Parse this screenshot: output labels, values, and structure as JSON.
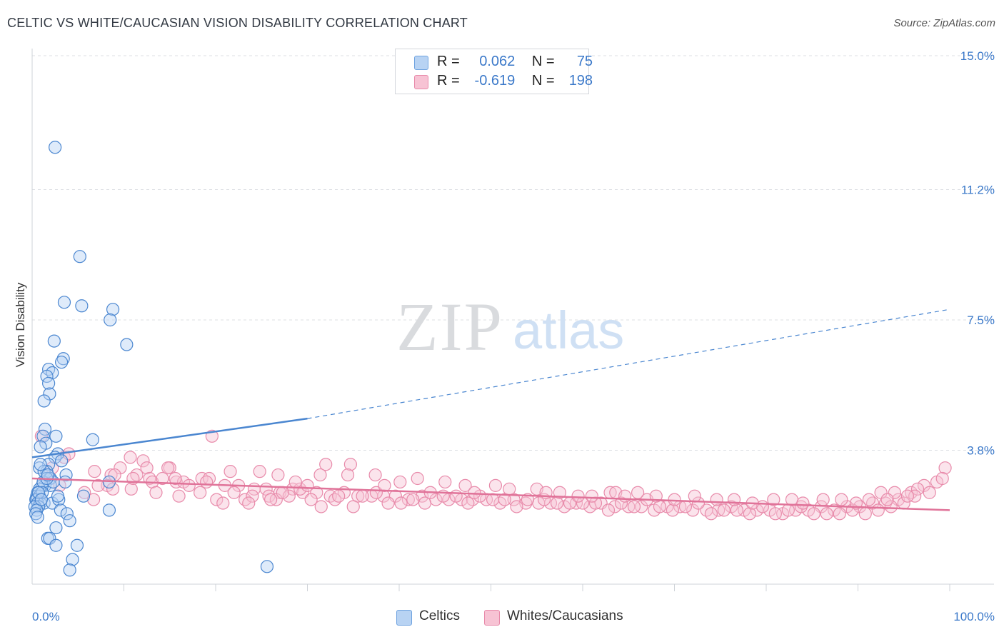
{
  "title": "CELTIC VS WHITE/CAUCASIAN VISION DISABILITY CORRELATION CHART",
  "source": "Source: ZipAtlas.com",
  "watermark": {
    "zip": "ZIP",
    "atlas": "atlas"
  },
  "legend": {
    "rows": [
      {
        "r_label": "R =",
        "r_value": "0.062",
        "n_label": "N =",
        "n_value": "75",
        "color": "#6fa3e0",
        "fill": "#b8d3f3"
      },
      {
        "r_label": "R =",
        "r_value": "-0.619",
        "n_label": "N =",
        "n_value": "198",
        "color": "#e88aaa",
        "fill": "#f7c3d4"
      }
    ]
  },
  "bottom_legend": [
    {
      "label": "Celtics",
      "color": "#6fa3e0",
      "fill": "#b8d3f3"
    },
    {
      "label": "Whites/Caucasians",
      "color": "#e88aaa",
      "fill": "#f7c3d4"
    }
  ],
  "chart_data": {
    "type": "scatter",
    "title": "CELTIC VS WHITE/CAUCASIAN VISION DISABILITY CORRELATION CHART",
    "xlabel": "",
    "ylabel": "Vision Disability",
    "xlim": [
      0,
      100
    ],
    "ylim": [
      0,
      15
    ],
    "x_tick_labels": [
      "0.0%",
      "100.0%"
    ],
    "y_ticks": [
      3.8,
      7.5,
      11.2,
      15.0
    ],
    "y_tick_labels": [
      "3.8%",
      "7.5%",
      "11.2%",
      "15.0%"
    ],
    "grid": true,
    "colors": {
      "celtics": "#4a86d0",
      "whites": "#e07399",
      "axis_text": "#3a78c9"
    },
    "series": [
      {
        "name": "Celtics",
        "trend": {
          "x0": 0,
          "y0": 3.6,
          "x1": 30,
          "y1": 4.7,
          "dashed_to_x": 100,
          "dashed_to_y": 7.8
        },
        "points": [
          [
            2.5,
            12.4
          ],
          [
            5.2,
            9.3
          ],
          [
            3.5,
            8.0
          ],
          [
            5.4,
            7.9
          ],
          [
            8.8,
            7.8
          ],
          [
            8.5,
            7.5
          ],
          [
            2.4,
            6.9
          ],
          [
            10.3,
            6.8
          ],
          [
            3.4,
            6.4
          ],
          [
            3.2,
            6.3
          ],
          [
            1.8,
            6.1
          ],
          [
            2.2,
            6.0
          ],
          [
            1.6,
            5.9
          ],
          [
            1.8,
            5.7
          ],
          [
            1.9,
            5.4
          ],
          [
            1.3,
            5.2
          ],
          [
            1.4,
            4.4
          ],
          [
            1.2,
            4.2
          ],
          [
            2.6,
            4.2
          ],
          [
            6.6,
            4.1
          ],
          [
            1.5,
            4.0
          ],
          [
            0.9,
            3.9
          ],
          [
            2.8,
            3.7
          ],
          [
            2.5,
            3.6
          ],
          [
            1.8,
            3.4
          ],
          [
            0.8,
            3.3
          ],
          [
            1.6,
            3.2
          ],
          [
            1.3,
            3.2
          ],
          [
            3.7,
            3.1
          ],
          [
            1.9,
            3.0
          ],
          [
            2.0,
            3.0
          ],
          [
            3.6,
            2.9
          ],
          [
            8.4,
            2.9
          ],
          [
            1.4,
            2.8
          ],
          [
            2.0,
            2.8
          ],
          [
            1.1,
            2.8
          ],
          [
            0.8,
            2.7
          ],
          [
            0.6,
            2.6
          ],
          [
            0.5,
            2.5
          ],
          [
            0.8,
            2.5
          ],
          [
            0.4,
            2.4
          ],
          [
            0.5,
            2.4
          ],
          [
            0.9,
            2.3
          ],
          [
            0.6,
            2.3
          ],
          [
            1.3,
            2.3
          ],
          [
            0.7,
            2.2
          ],
          [
            0.3,
            2.2
          ],
          [
            2.2,
            2.3
          ],
          [
            2.9,
            2.4
          ],
          [
            5.6,
            2.5
          ],
          [
            3.1,
            2.1
          ],
          [
            0.5,
            2.1
          ],
          [
            0.4,
            2.0
          ],
          [
            0.6,
            1.9
          ],
          [
            3.8,
            2.0
          ],
          [
            4.1,
            1.8
          ],
          [
            2.6,
            1.6
          ],
          [
            1.7,
            1.3
          ],
          [
            1.9,
            1.3
          ],
          [
            2.6,
            1.1
          ],
          [
            4.9,
            1.1
          ],
          [
            4.4,
            0.7
          ],
          [
            4.1,
            0.4
          ],
          [
            25.6,
            0.5
          ],
          [
            8.4,
            2.1
          ],
          [
            2.8,
            2.5
          ],
          [
            1.2,
            2.9
          ],
          [
            0.9,
            3.4
          ],
          [
            2.3,
            2.9
          ],
          [
            1.1,
            2.6
          ],
          [
            1.6,
            3.0
          ],
          [
            3.2,
            3.5
          ],
          [
            0.7,
            2.6
          ],
          [
            1.0,
            2.4
          ],
          [
            1.7,
            3.1
          ]
        ]
      },
      {
        "name": "Whites/Caucasians",
        "trend": {
          "x0": 0,
          "y0": 3.0,
          "x1": 100,
          "y1": 2.1
        },
        "points": [
          [
            1.0,
            4.2
          ],
          [
            3.5,
            3.6
          ],
          [
            19.6,
            4.2
          ],
          [
            10.7,
            3.6
          ],
          [
            12.1,
            3.5
          ],
          [
            12.5,
            3.3
          ],
          [
            15.0,
            3.3
          ],
          [
            9.6,
            3.3
          ],
          [
            6.8,
            3.2
          ],
          [
            8.6,
            3.1
          ],
          [
            11.4,
            3.1
          ],
          [
            12.8,
            3.0
          ],
          [
            13.1,
            2.9
          ],
          [
            14.2,
            3.0
          ],
          [
            15.7,
            2.9
          ],
          [
            16.5,
            2.9
          ],
          [
            17.1,
            2.8
          ],
          [
            18.5,
            3.0
          ],
          [
            19.3,
            3.0
          ],
          [
            21.0,
            2.8
          ],
          [
            22.5,
            2.8
          ],
          [
            24.2,
            2.7
          ],
          [
            25.5,
            2.7
          ],
          [
            27.0,
            2.6
          ],
          [
            28.4,
            2.7
          ],
          [
            29.5,
            2.6
          ],
          [
            31.0,
            2.6
          ],
          [
            32.5,
            2.5
          ],
          [
            34.0,
            2.6
          ],
          [
            35.5,
            2.5
          ],
          [
            37.0,
            2.5
          ],
          [
            38.3,
            2.5
          ],
          [
            39.6,
            2.5
          ],
          [
            41.0,
            2.4
          ],
          [
            42.5,
            2.5
          ],
          [
            44.0,
            2.4
          ],
          [
            45.4,
            2.4
          ],
          [
            46.8,
            2.4
          ],
          [
            48.0,
            2.4
          ],
          [
            49.5,
            2.4
          ],
          [
            51.0,
            2.3
          ],
          [
            52.5,
            2.4
          ],
          [
            53.8,
            2.3
          ],
          [
            55.2,
            2.3
          ],
          [
            56.5,
            2.3
          ],
          [
            58.0,
            2.2
          ],
          [
            59.3,
            2.3
          ],
          [
            60.8,
            2.2
          ],
          [
            62.0,
            2.3
          ],
          [
            63.5,
            2.2
          ],
          [
            65.0,
            2.2
          ],
          [
            66.4,
            2.2
          ],
          [
            67.8,
            2.1
          ],
          [
            69.2,
            2.2
          ],
          [
            70.6,
            2.2
          ],
          [
            72.0,
            2.1
          ],
          [
            73.5,
            2.1
          ],
          [
            74.8,
            2.1
          ],
          [
            76.2,
            2.2
          ],
          [
            77.6,
            2.1
          ],
          [
            79.0,
            2.1
          ],
          [
            80.4,
            2.1
          ],
          [
            81.8,
            2.0
          ],
          [
            83.2,
            2.1
          ],
          [
            84.6,
            2.1
          ],
          [
            86.0,
            2.2
          ],
          [
            87.4,
            2.1
          ],
          [
            88.8,
            2.2
          ],
          [
            90.2,
            2.2
          ],
          [
            91.6,
            2.3
          ],
          [
            93.0,
            2.3
          ],
          [
            94.4,
            2.4
          ],
          [
            95.8,
            2.6
          ],
          [
            97.2,
            2.8
          ],
          [
            98.6,
            2.9
          ],
          [
            99.5,
            3.3
          ],
          [
            99.2,
            3.0
          ],
          [
            96.5,
            2.7
          ],
          [
            94.0,
            2.6
          ],
          [
            92.5,
            2.6
          ],
          [
            4.0,
            3.7
          ],
          [
            2.2,
            3.3
          ],
          [
            5.7,
            2.6
          ],
          [
            6.7,
            2.4
          ],
          [
            8.2,
            2.8
          ],
          [
            8.8,
            2.7
          ],
          [
            10.8,
            2.7
          ],
          [
            13.5,
            2.6
          ],
          [
            16.0,
            2.5
          ],
          [
            18.3,
            2.6
          ],
          [
            20.1,
            2.4
          ],
          [
            20.8,
            2.3
          ],
          [
            22.0,
            2.6
          ],
          [
            23.2,
            2.4
          ],
          [
            24.0,
            2.5
          ],
          [
            25.8,
            2.5
          ],
          [
            26.6,
            2.4
          ],
          [
            28.0,
            2.5
          ],
          [
            29.2,
            2.7
          ],
          [
            30.4,
            2.4
          ],
          [
            31.5,
            2.2
          ],
          [
            32.0,
            3.4
          ],
          [
            33.0,
            2.4
          ],
          [
            35.0,
            2.2
          ],
          [
            36.0,
            2.5
          ],
          [
            37.5,
            2.6
          ],
          [
            38.8,
            2.3
          ],
          [
            40.2,
            2.3
          ],
          [
            41.5,
            2.4
          ],
          [
            42.8,
            2.3
          ],
          [
            43.4,
            2.6
          ],
          [
            44.8,
            2.5
          ],
          [
            46.2,
            2.5
          ],
          [
            47.5,
            2.3
          ],
          [
            48.8,
            2.5
          ],
          [
            50.2,
            2.4
          ],
          [
            51.5,
            2.4
          ],
          [
            52.8,
            2.2
          ],
          [
            54.0,
            2.4
          ],
          [
            55.8,
            2.4
          ],
          [
            57.2,
            2.3
          ],
          [
            58.6,
            2.3
          ],
          [
            60.0,
            2.3
          ],
          [
            61.4,
            2.3
          ],
          [
            62.8,
            2.1
          ],
          [
            64.2,
            2.3
          ],
          [
            65.6,
            2.2
          ],
          [
            67.0,
            2.4
          ],
          [
            68.4,
            2.2
          ],
          [
            69.8,
            2.1
          ],
          [
            71.2,
            2.2
          ],
          [
            72.6,
            2.3
          ],
          [
            74.0,
            2.0
          ],
          [
            75.4,
            2.1
          ],
          [
            76.8,
            2.1
          ],
          [
            78.2,
            2.0
          ],
          [
            79.6,
            2.2
          ],
          [
            81.0,
            2.0
          ],
          [
            82.4,
            2.1
          ],
          [
            83.8,
            2.2
          ],
          [
            85.2,
            2.0
          ],
          [
            86.6,
            2.0
          ],
          [
            88.0,
            2.0
          ],
          [
            89.4,
            2.1
          ],
          [
            90.8,
            2.0
          ],
          [
            92.2,
            2.1
          ],
          [
            93.6,
            2.2
          ],
          [
            95.0,
            2.3
          ],
          [
            96.2,
            2.5
          ],
          [
            97.8,
            2.6
          ],
          [
            21.6,
            3.2
          ],
          [
            24.8,
            3.2
          ],
          [
            26.8,
            3.1
          ],
          [
            28.7,
            2.9
          ],
          [
            31.4,
            3.1
          ],
          [
            34.7,
            3.4
          ],
          [
            34.4,
            3.1
          ],
          [
            37.4,
            3.1
          ],
          [
            38.4,
            2.8
          ],
          [
            40.1,
            2.9
          ],
          [
            42.0,
            3.0
          ],
          [
            45.0,
            2.9
          ],
          [
            47.2,
            2.8
          ],
          [
            48.2,
            2.6
          ],
          [
            50.5,
            2.8
          ],
          [
            52.0,
            2.7
          ],
          [
            55.0,
            2.7
          ],
          [
            56.0,
            2.6
          ],
          [
            57.5,
            2.6
          ],
          [
            59.5,
            2.5
          ],
          [
            61.0,
            2.5
          ],
          [
            63.0,
            2.6
          ],
          [
            63.6,
            2.6
          ],
          [
            64.6,
            2.5
          ],
          [
            66.0,
            2.6
          ],
          [
            68.0,
            2.5
          ],
          [
            70.0,
            2.4
          ],
          [
            72.2,
            2.5
          ],
          [
            74.6,
            2.4
          ],
          [
            76.5,
            2.4
          ],
          [
            78.5,
            2.3
          ],
          [
            80.8,
            2.4
          ],
          [
            82.8,
            2.4
          ],
          [
            84.0,
            2.3
          ],
          [
            86.2,
            2.4
          ],
          [
            88.2,
            2.4
          ],
          [
            89.8,
            2.3
          ],
          [
            91.2,
            2.4
          ],
          [
            93.2,
            2.4
          ],
          [
            95.4,
            2.5
          ],
          [
            3.0,
            2.8
          ],
          [
            7.2,
            2.8
          ],
          [
            9.0,
            3.1
          ],
          [
            11.0,
            3.0
          ],
          [
            14.8,
            3.3
          ],
          [
            15.6,
            3.0
          ],
          [
            19.0,
            2.9
          ],
          [
            23.6,
            2.3
          ],
          [
            26.0,
            2.4
          ],
          [
            27.3,
            2.6
          ],
          [
            30.0,
            2.8
          ],
          [
            33.4,
            2.5
          ]
        ]
      }
    ]
  }
}
